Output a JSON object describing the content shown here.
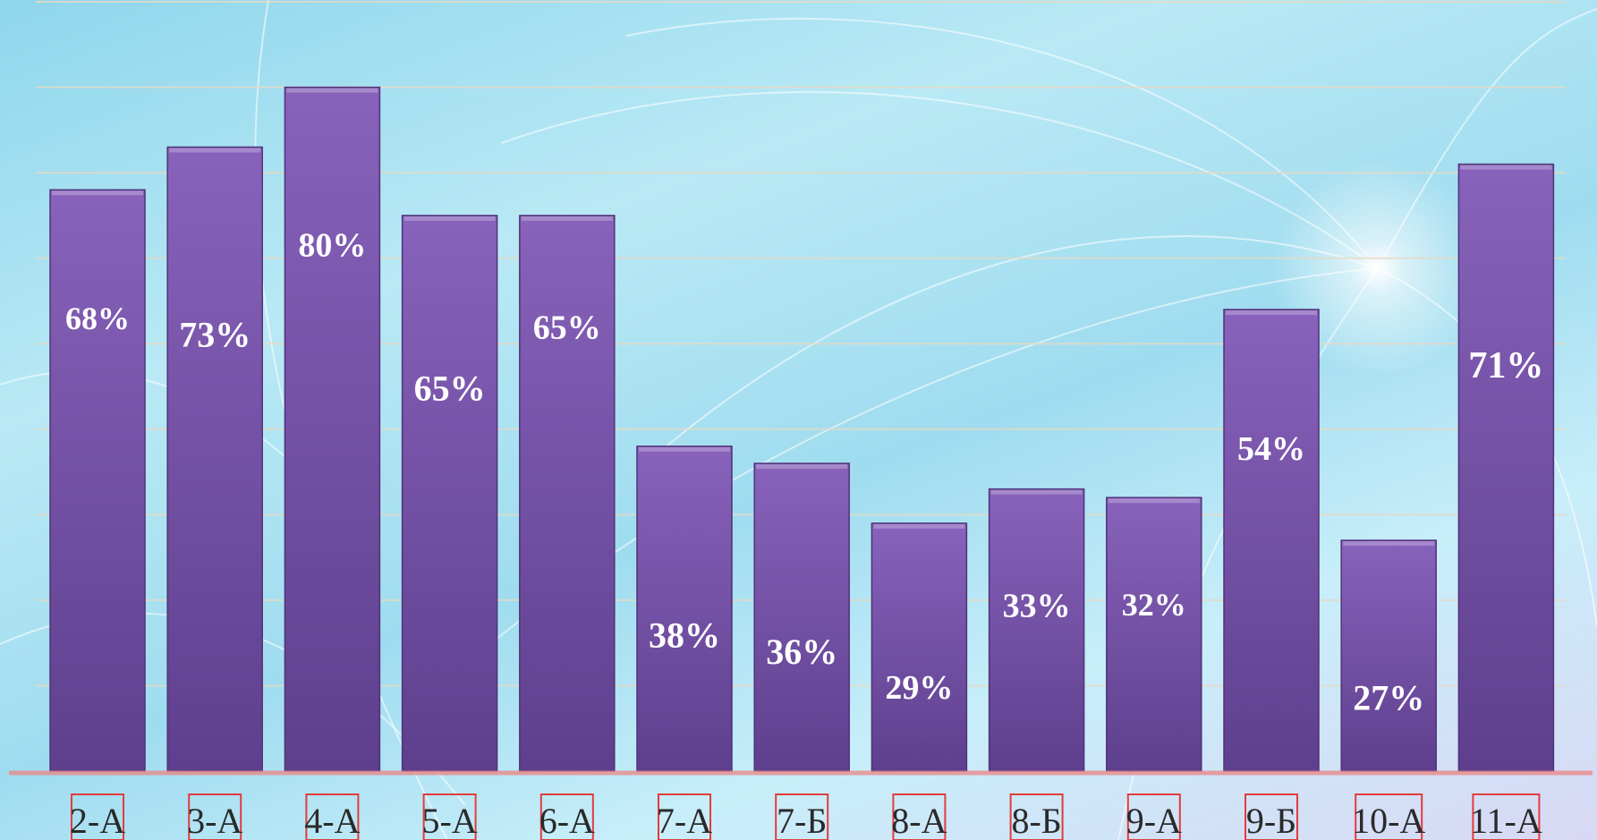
{
  "chart_data": {
    "type": "bar",
    "categories": [
      "2-А",
      "3-А",
      "4-А",
      "5-А",
      "6-А",
      "7-А",
      "7-Б",
      "8-А",
      "8-Б",
      "9-А",
      "9-Б",
      "10-А",
      "11-А"
    ],
    "values": [
      68,
      73,
      80,
      65,
      65,
      38,
      36,
      29,
      33,
      32,
      54,
      27,
      71
    ],
    "value_labels": [
      "68%",
      "73%",
      "80%",
      "65%",
      "65%",
      "38%",
      "36%",
      "29%",
      "33%",
      "32%",
      "54%",
      "27%",
      "71%"
    ],
    "ylim": [
      0,
      90
    ],
    "grid": true,
    "title": "",
    "xlabel": "",
    "ylabel": ""
  },
  "colors": {
    "bar_top": "#8862bb",
    "bar_bottom": "#5e3f8d",
    "bar_edge": "#4f3379",
    "baseline": "#e88a8a",
    "label_box_border": "#e23c3c",
    "gridline": "#e4d9c6"
  }
}
